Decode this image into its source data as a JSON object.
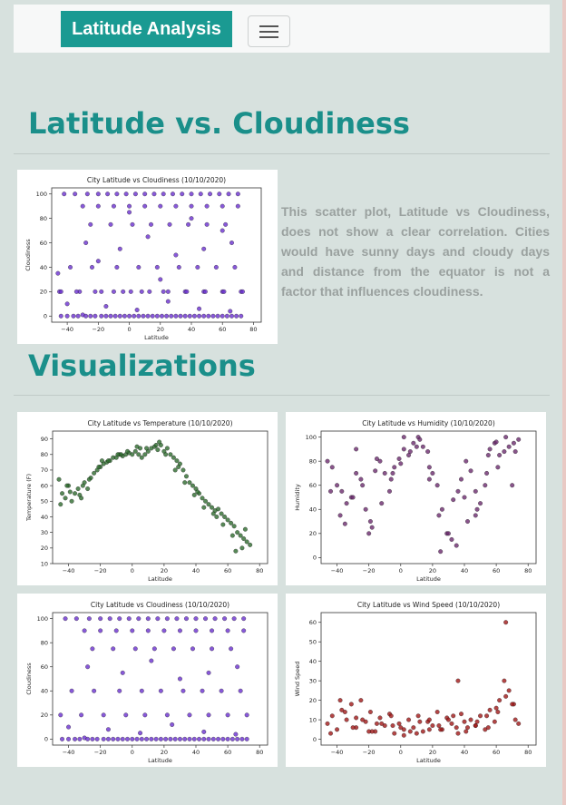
{
  "navbar": {
    "brand": "Latitude Analysis",
    "toggle_icon": "hamburger-icon"
  },
  "section1": {
    "title": "Latitude vs. Cloudiness",
    "description": "This scatter plot, Latitude vs Cloudiness, does not show a clear correlation. Cities would have sunny days and cloudy days and distance from the equator is not a factor that influences cloudiness."
  },
  "section2": {
    "title": "Visualizations"
  },
  "colors": {
    "brand": "#1a9a92",
    "heading": "#1a8f8a",
    "background": "#d7e1de",
    "cloud": "#6a2fd0",
    "temp": "#2e6b2e",
    "humidity": "#6b2a6e",
    "wind": "#a01818"
  },
  "chart_data": [
    {
      "id": "cloud-main",
      "type": "scatter",
      "title": "City Latitude vs Cloudiness (10/10/2020)",
      "xlabel": "Latitude",
      "ylabel": "Cloudiness",
      "xlim": [
        -50,
        85
      ],
      "ylim": [
        -5,
        105
      ],
      "xticks": [
        -40,
        -20,
        0,
        20,
        40,
        60,
        80
      ],
      "yticks": [
        0,
        20,
        40,
        60,
        80,
        100
      ],
      "color": "#6a2fd0",
      "x": [
        -44,
        -40,
        -36,
        -33,
        -30,
        -28,
        -25,
        -22,
        -18,
        -15,
        -12,
        -9,
        -6,
        -3,
        0,
        3,
        6,
        9,
        12,
        15,
        18,
        21,
        24,
        27,
        30,
        33,
        36,
        39,
        42,
        45,
        48,
        51,
        54,
        57,
        60,
        63,
        66,
        69,
        72,
        -42,
        -35,
        -27,
        -20,
        -14,
        -8,
        -2,
        4,
        10,
        16,
        22,
        28,
        34,
        40,
        46,
        52,
        58,
        64,
        70,
        -30,
        -20,
        -10,
        0,
        10,
        20,
        30,
        40,
        50,
        60,
        70,
        -25,
        -12,
        2,
        14,
        26,
        38,
        50,
        62,
        -38,
        -24,
        -8,
        6,
        18,
        32,
        44,
        56,
        68,
        -45,
        -32,
        -18,
        -4,
        8,
        22,
        36,
        48,
        60,
        72,
        -44,
        -34,
        -22,
        -10,
        1,
        13,
        25,
        37,
        49,
        61,
        73,
        -28,
        -6,
        12,
        30,
        48,
        66,
        -40,
        -15,
        5,
        25,
        45,
        65,
        -46,
        -20,
        0,
        20,
        40,
        60
      ],
      "y": [
        0,
        0,
        0,
        0,
        1,
        0,
        0,
        0,
        0,
        0,
        0,
        0,
        0,
        0,
        0,
        0,
        0,
        0,
        0,
        0,
        0,
        0,
        0,
        0,
        0,
        0,
        0,
        0,
        0,
        0,
        0,
        0,
        0,
        0,
        0,
        0,
        0,
        0,
        0,
        100,
        100,
        100,
        100,
        100,
        100,
        100,
        100,
        100,
        100,
        100,
        100,
        100,
        100,
        100,
        100,
        100,
        100,
        100,
        90,
        90,
        90,
        90,
        90,
        90,
        90,
        90,
        90,
        90,
        90,
        75,
        75,
        75,
        75,
        75,
        75,
        75,
        75,
        40,
        40,
        40,
        40,
        40,
        40,
        40,
        40,
        40,
        20,
        20,
        20,
        20,
        20,
        20,
        20,
        20,
        20,
        20,
        20,
        20,
        20,
        20,
        20,
        20,
        20,
        20,
        20,
        20,
        20,
        60,
        55,
        65,
        50,
        55,
        60,
        10,
        8,
        5,
        12,
        6,
        4,
        35,
        45,
        85,
        30,
        80,
        70
      ]
    },
    {
      "id": "temp",
      "type": "scatter",
      "title": "City Latitude vs Temperature (10/10/2020)",
      "xlabel": "Latitude",
      "ylabel": "Temperature (F)",
      "xlim": [
        -50,
        85
      ],
      "ylim": [
        10,
        95
      ],
      "xticks": [
        -40,
        -20,
        0,
        20,
        40,
        60,
        80
      ],
      "yticks": [
        10,
        20,
        30,
        40,
        50,
        60,
        70,
        80,
        90
      ],
      "color": "#2e6b2e",
      "x": [
        -46,
        -44,
        -42,
        -40,
        -38,
        -36,
        -34,
        -32,
        -30,
        -28,
        -26,
        -24,
        -22,
        -20,
        -18,
        -16,
        -14,
        -12,
        -10,
        -8,
        -6,
        -4,
        -2,
        0,
        2,
        4,
        6,
        8,
        10,
        12,
        14,
        16,
        18,
        20,
        22,
        24,
        26,
        28,
        30,
        32,
        34,
        36,
        38,
        40,
        42,
        44,
        46,
        48,
        50,
        52,
        54,
        56,
        58,
        60,
        62,
        64,
        66,
        68,
        70,
        72,
        74,
        -45,
        -39,
        -33,
        -27,
        -21,
        -15,
        -9,
        -3,
        3,
        9,
        15,
        21,
        27,
        33,
        39,
        45,
        51,
        57,
        63,
        69,
        -41,
        -31,
        -19,
        -7,
        5,
        17,
        29,
        41,
        53,
        65,
        71
      ],
      "y": [
        64,
        55,
        52,
        60,
        50,
        55,
        58,
        52,
        62,
        58,
        65,
        68,
        70,
        72,
        74,
        75,
        76,
        78,
        78,
        80,
        79,
        80,
        81,
        80,
        82,
        80,
        78,
        80,
        82,
        84,
        85,
        83,
        86,
        82,
        84,
        80,
        78,
        76,
        74,
        70,
        66,
        62,
        60,
        58,
        55,
        52,
        50,
        48,
        46,
        44,
        45,
        42,
        40,
        38,
        36,
        34,
        30,
        28,
        26,
        24,
        22,
        48,
        56,
        54,
        64,
        72,
        76,
        80,
        82,
        85,
        84,
        86,
        80,
        70,
        62,
        54,
        46,
        42,
        35,
        28,
        20,
        60,
        60,
        76,
        80,
        84,
        88,
        72,
        56,
        40,
        18,
        32
      ]
    },
    {
      "id": "humidity",
      "type": "scatter",
      "title": "City Latitude vs Humidity (10/10/2020)",
      "xlabel": "Latitude",
      "ylabel": "Humidity",
      "xlim": [
        -50,
        85
      ],
      "ylim": [
        -5,
        105
      ],
      "xticks": [
        -40,
        -20,
        0,
        20,
        40,
        60,
        80
      ],
      "yticks": [
        0,
        20,
        40,
        60,
        80,
        100
      ],
      "color": "#6b2a6e",
      "x": [
        -46,
        -43,
        -40,
        -37,
        -34,
        -31,
        -28,
        -25,
        -22,
        -19,
        -16,
        -13,
        -10,
        -7,
        -4,
        -1,
        2,
        5,
        8,
        11,
        14,
        17,
        20,
        23,
        26,
        29,
        32,
        35,
        38,
        41,
        44,
        47,
        50,
        53,
        56,
        59,
        62,
        65,
        68,
        71,
        74,
        -44,
        -38,
        -30,
        -24,
        -18,
        -12,
        -6,
        0,
        6,
        12,
        18,
        24,
        30,
        36,
        42,
        48,
        54,
        60,
        66,
        72,
        -35,
        -20,
        -5,
        10,
        25,
        40,
        55,
        70,
        -28,
        -15,
        2,
        18,
        33,
        47,
        61
      ],
      "y": [
        80,
        75,
        60,
        55,
        45,
        50,
        70,
        65,
        40,
        30,
        72,
        80,
        70,
        55,
        75,
        82,
        90,
        85,
        95,
        100,
        92,
        88,
        70,
        60,
        40,
        20,
        15,
        10,
        65,
        80,
        72,
        55,
        45,
        60,
        90,
        95,
        85,
        88,
        92,
        95,
        98,
        55,
        35,
        50,
        60,
        25,
        45,
        65,
        78,
        88,
        98,
        75,
        35,
        20,
        55,
        30,
        40,
        70,
        96,
        100,
        88,
        28,
        20,
        70,
        92,
        5,
        50,
        85,
        60,
        90,
        82,
        100,
        65,
        48,
        35,
        75
      ]
    },
    {
      "id": "cloud-small",
      "type": "scatter",
      "title": "City Latitude vs Cloudiness (10/10/2020)",
      "xlabel": "Latitude",
      "ylabel": "Cloudiness",
      "xlim": [
        -50,
        85
      ],
      "ylim": [
        -5,
        105
      ],
      "xticks": [
        -40,
        -20,
        0,
        20,
        40,
        60,
        80
      ],
      "yticks": [
        0,
        20,
        40,
        60,
        80,
        100
      ],
      "color": "#6a2fd0",
      "x": [
        -44,
        -40,
        -36,
        -33,
        -30,
        -28,
        -25,
        -22,
        -18,
        -15,
        -12,
        -9,
        -6,
        -3,
        0,
        3,
        6,
        9,
        12,
        15,
        18,
        21,
        24,
        27,
        30,
        33,
        36,
        39,
        42,
        45,
        48,
        51,
        54,
        57,
        60,
        63,
        66,
        69,
        72,
        -42,
        -35,
        -27,
        -20,
        -14,
        -8,
        -2,
        4,
        10,
        16,
        22,
        28,
        34,
        40,
        46,
        52,
        58,
        64,
        70,
        -30,
        -20,
        -10,
        0,
        10,
        20,
        30,
        40,
        50,
        60,
        70,
        -25,
        -12,
        2,
        14,
        26,
        38,
        50,
        62,
        -38,
        -24,
        -8,
        6,
        18,
        32,
        44,
        56,
        68,
        -45,
        -32,
        -18,
        -4,
        8,
        22,
        36,
        48,
        60,
        72,
        -28,
        -6,
        12,
        30,
        48,
        66,
        -40,
        -15,
        5,
        25,
        45,
        65
      ],
      "y": [
        0,
        0,
        0,
        0,
        1,
        0,
        0,
        0,
        0,
        0,
        0,
        0,
        0,
        0,
        0,
        0,
        0,
        0,
        0,
        0,
        0,
        0,
        0,
        0,
        0,
        0,
        0,
        0,
        0,
        0,
        0,
        0,
        0,
        0,
        0,
        0,
        0,
        0,
        0,
        100,
        100,
        100,
        100,
        100,
        100,
        100,
        100,
        100,
        100,
        100,
        100,
        100,
        100,
        100,
        100,
        100,
        100,
        100,
        90,
        90,
        90,
        90,
        90,
        90,
        90,
        90,
        90,
        90,
        90,
        75,
        75,
        75,
        75,
        75,
        75,
        75,
        75,
        40,
        40,
        40,
        40,
        40,
        40,
        40,
        40,
        40,
        20,
        20,
        20,
        20,
        20,
        20,
        20,
        20,
        20,
        20,
        60,
        55,
        65,
        50,
        55,
        60,
        10,
        8,
        5,
        12,
        6,
        4
      ]
    },
    {
      "id": "wind",
      "type": "scatter",
      "title": "City Latitude vs Wind Speed (10/10/2020)",
      "xlabel": "Latitude",
      "ylabel": "Wind Speed",
      "xlim": [
        -50,
        85
      ],
      "ylim": [
        -3,
        65
      ],
      "xticks": [
        -40,
        -20,
        0,
        20,
        40,
        60,
        80
      ],
      "yticks": [
        0,
        10,
        20,
        30,
        40,
        50,
        60
      ],
      "color": "#a01818",
      "x": [
        -46,
        -43,
        -40,
        -37,
        -34,
        -31,
        -28,
        -25,
        -22,
        -19,
        -16,
        -13,
        -10,
        -7,
        -4,
        -1,
        2,
        5,
        8,
        11,
        14,
        17,
        20,
        23,
        26,
        29,
        32,
        35,
        38,
        41,
        44,
        47,
        50,
        53,
        56,
        59,
        62,
        65,
        68,
        71,
        74,
        -44,
        -38,
        -30,
        -24,
        -18,
        -12,
        -6,
        0,
        6,
        12,
        18,
        24,
        30,
        36,
        42,
        48,
        54,
        60,
        66,
        72,
        -35,
        -20,
        -5,
        10,
        25,
        40,
        55,
        70,
        -28,
        -15,
        2,
        18,
        33,
        47,
        61,
        66,
        36
      ],
      "y": [
        8,
        12,
        5,
        15,
        10,
        18,
        6,
        20,
        9,
        14,
        4,
        11,
        7,
        13,
        3,
        8,
        5,
        10,
        6,
        12,
        4,
        9,
        7,
        14,
        5,
        11,
        8,
        6,
        13,
        4,
        10,
        7,
        12,
        5,
        15,
        9,
        20,
        30,
        25,
        18,
        8,
        3,
        20,
        6,
        10,
        4,
        8,
        12,
        6,
        4,
        9,
        5,
        7,
        10,
        3,
        6,
        9,
        12,
        16,
        22,
        10,
        14,
        4,
        7,
        3,
        5,
        9,
        6,
        18,
        11,
        8,
        2,
        10,
        12,
        7,
        14,
        60,
        30
      ]
    }
  ]
}
